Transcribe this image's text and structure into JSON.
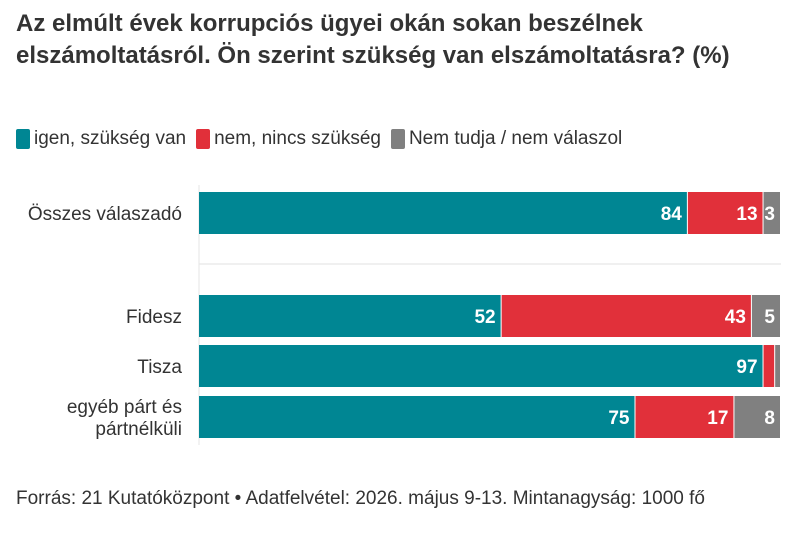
{
  "title": "Az elmúlt évek korrupciós ügyei okán sokan beszélnek elszámoltatásról. Ön szerint szükség van elszámoltatásra? (%)",
  "legend": [
    {
      "label": "igen, szükség van",
      "color": "#008693"
    },
    {
      "label": "nem, nincs szükség",
      "color": "#e1303a"
    },
    {
      "label": "Nem tudja / nem válaszol",
      "color": "#808080"
    }
  ],
  "chart_data": {
    "type": "bar",
    "orientation": "horizontal",
    "stacked": true,
    "categories": [
      "Összes válaszadó",
      "Fidesz",
      "Tisza",
      "egyéb párt és pártnélküli"
    ],
    "series": [
      {
        "name": "igen, szükség van",
        "color": "#008693",
        "values": [
          84,
          52,
          97,
          75
        ]
      },
      {
        "name": "nem, nincs szükség",
        "color": "#e1303a",
        "values": [
          13,
          43,
          2,
          17
        ]
      },
      {
        "name": "Nem tudja / nem válaszol",
        "color": "#808080",
        "values": [
          3,
          5,
          1,
          8
        ]
      }
    ],
    "xlim": [
      0,
      100
    ],
    "legend_position": "top-left"
  },
  "footer": "Forrás: 21 Kutatóközpont • Adatfelvétel: 2026. május 9-13. Mintanagyság: 1000 fő"
}
